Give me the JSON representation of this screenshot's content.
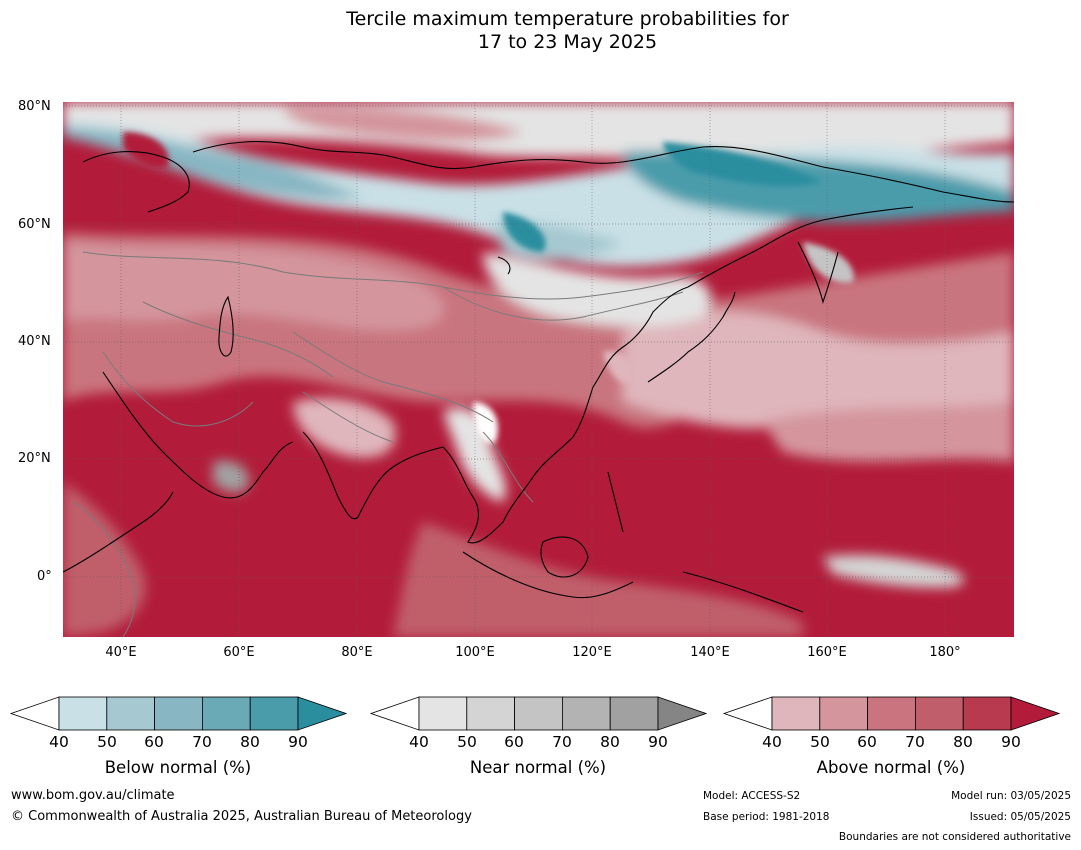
{
  "title": {
    "line1": "Tercile maximum temperature probabilities for",
    "line2": "17 to 23 May 2025"
  },
  "map": {
    "lat_labels": [
      "80°N",
      "60°N",
      "40°N",
      "20°N",
      "0°"
    ],
    "lon_labels": [
      "40°E",
      "60°E",
      "80°E",
      "100°E",
      "120°E",
      "140°E",
      "160°E",
      "180°"
    ],
    "colors": {
      "below": [
        "#c9e0e6",
        "#a6c8d0",
        "#88b6c3",
        "#6aa9b6",
        "#4b9cab",
        "#2b8e9f"
      ],
      "near": [
        "#e4e4e4",
        "#d4d4d4",
        "#c4c4c4",
        "#b3b3b3",
        "#a1a1a1",
        "#858585"
      ],
      "above": [
        "#dfb6bb",
        "#d4959d",
        "#c9747f",
        "#c05e6b",
        "#b83a4f",
        "#b21c3a"
      ],
      "coastline": "#000000",
      "borders": "#7a7a7a"
    }
  },
  "colorbars": [
    {
      "key": "below",
      "ticks": [
        "40",
        "50",
        "60",
        "70",
        "80",
        "90"
      ],
      "label": "Below normal (%)"
    },
    {
      "key": "near",
      "ticks": [
        "40",
        "50",
        "60",
        "70",
        "80",
        "90"
      ],
      "label": "Near normal (%)"
    },
    {
      "key": "above",
      "ticks": [
        "40",
        "50",
        "60",
        "70",
        "80",
        "90"
      ],
      "label": "Above normal (%)"
    }
  ],
  "footer": {
    "website": "www.bom.gov.au/climate",
    "copyright": "© Commonwealth of Australia 2025, Australian Bureau of Meteorology",
    "model": "Model: ACCESS-S2",
    "base_period": "Base period: 1981-2018",
    "model_run": "Model run: 03/05/2025",
    "issued": "Issued: 05/05/2025",
    "boundaries": "Boundaries are not considered authoritative"
  }
}
